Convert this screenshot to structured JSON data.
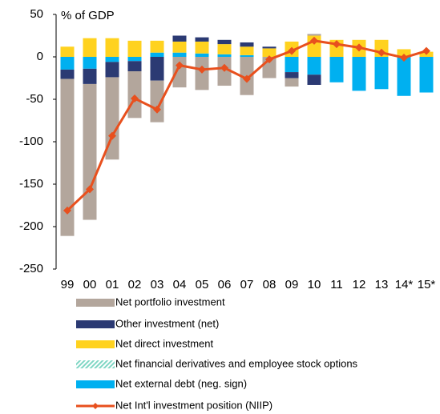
{
  "chart_data": {
    "type": "bar",
    "title": "% of GDP",
    "categories": [
      "99",
      "00",
      "01",
      "02",
      "03",
      "04",
      "05",
      "06",
      "07",
      "08",
      "09",
      "10",
      "11",
      "12",
      "13",
      "14*",
      "15*"
    ],
    "ylim": [
      -250,
      50
    ],
    "yticks": [
      -250,
      -200,
      -150,
      -100,
      -50,
      0,
      50
    ],
    "series": [
      {
        "name": "Net portfolio investment",
        "color": "#b3a69c",
        "values": [
          -185,
          -160,
          -97,
          -55,
          -49,
          -36,
          -39,
          -34,
          -45,
          -25,
          -10,
          2,
          0,
          0,
          0,
          0,
          0
        ]
      },
      {
        "name": "Other investment (net)",
        "color": "#2b3a73",
        "values": [
          -11,
          -18,
          -18,
          -12,
          -28,
          7,
          5,
          5,
          5,
          2,
          -7,
          -12,
          0,
          0,
          0,
          0,
          0
        ]
      },
      {
        "name": "Net direct investment",
        "color": "#ffd21f",
        "values": [
          12,
          22,
          22,
          19,
          14,
          13,
          14,
          12,
          10,
          10,
          18,
          25,
          20,
          20,
          20,
          9,
          6
        ]
      },
      {
        "name": "Net financial derivatives and employee stock options",
        "color": "#7fd6c4",
        "values": [
          0,
          0,
          0,
          0,
          0,
          0,
          0,
          0,
          0,
          0,
          0,
          0,
          0,
          0,
          0,
          0,
          0
        ]
      },
      {
        "name": "Net external debt (neg. sign)",
        "color": "#00b0f0",
        "values": [
          -15,
          -14,
          -6,
          -5,
          5,
          5,
          4,
          3,
          2,
          0,
          -18,
          -21,
          -30,
          -40,
          -38,
          -46,
          -42
        ]
      },
      {
        "name": "Net Int'l investment position (NIIP)",
        "color": "#e8501e",
        "type": "line",
        "values": [
          -181,
          -156,
          -93,
          -49,
          -62,
          -10,
          -15,
          -13,
          -26,
          -3,
          7,
          19,
          15,
          11,
          5,
          -1,
          7
        ]
      }
    ]
  }
}
